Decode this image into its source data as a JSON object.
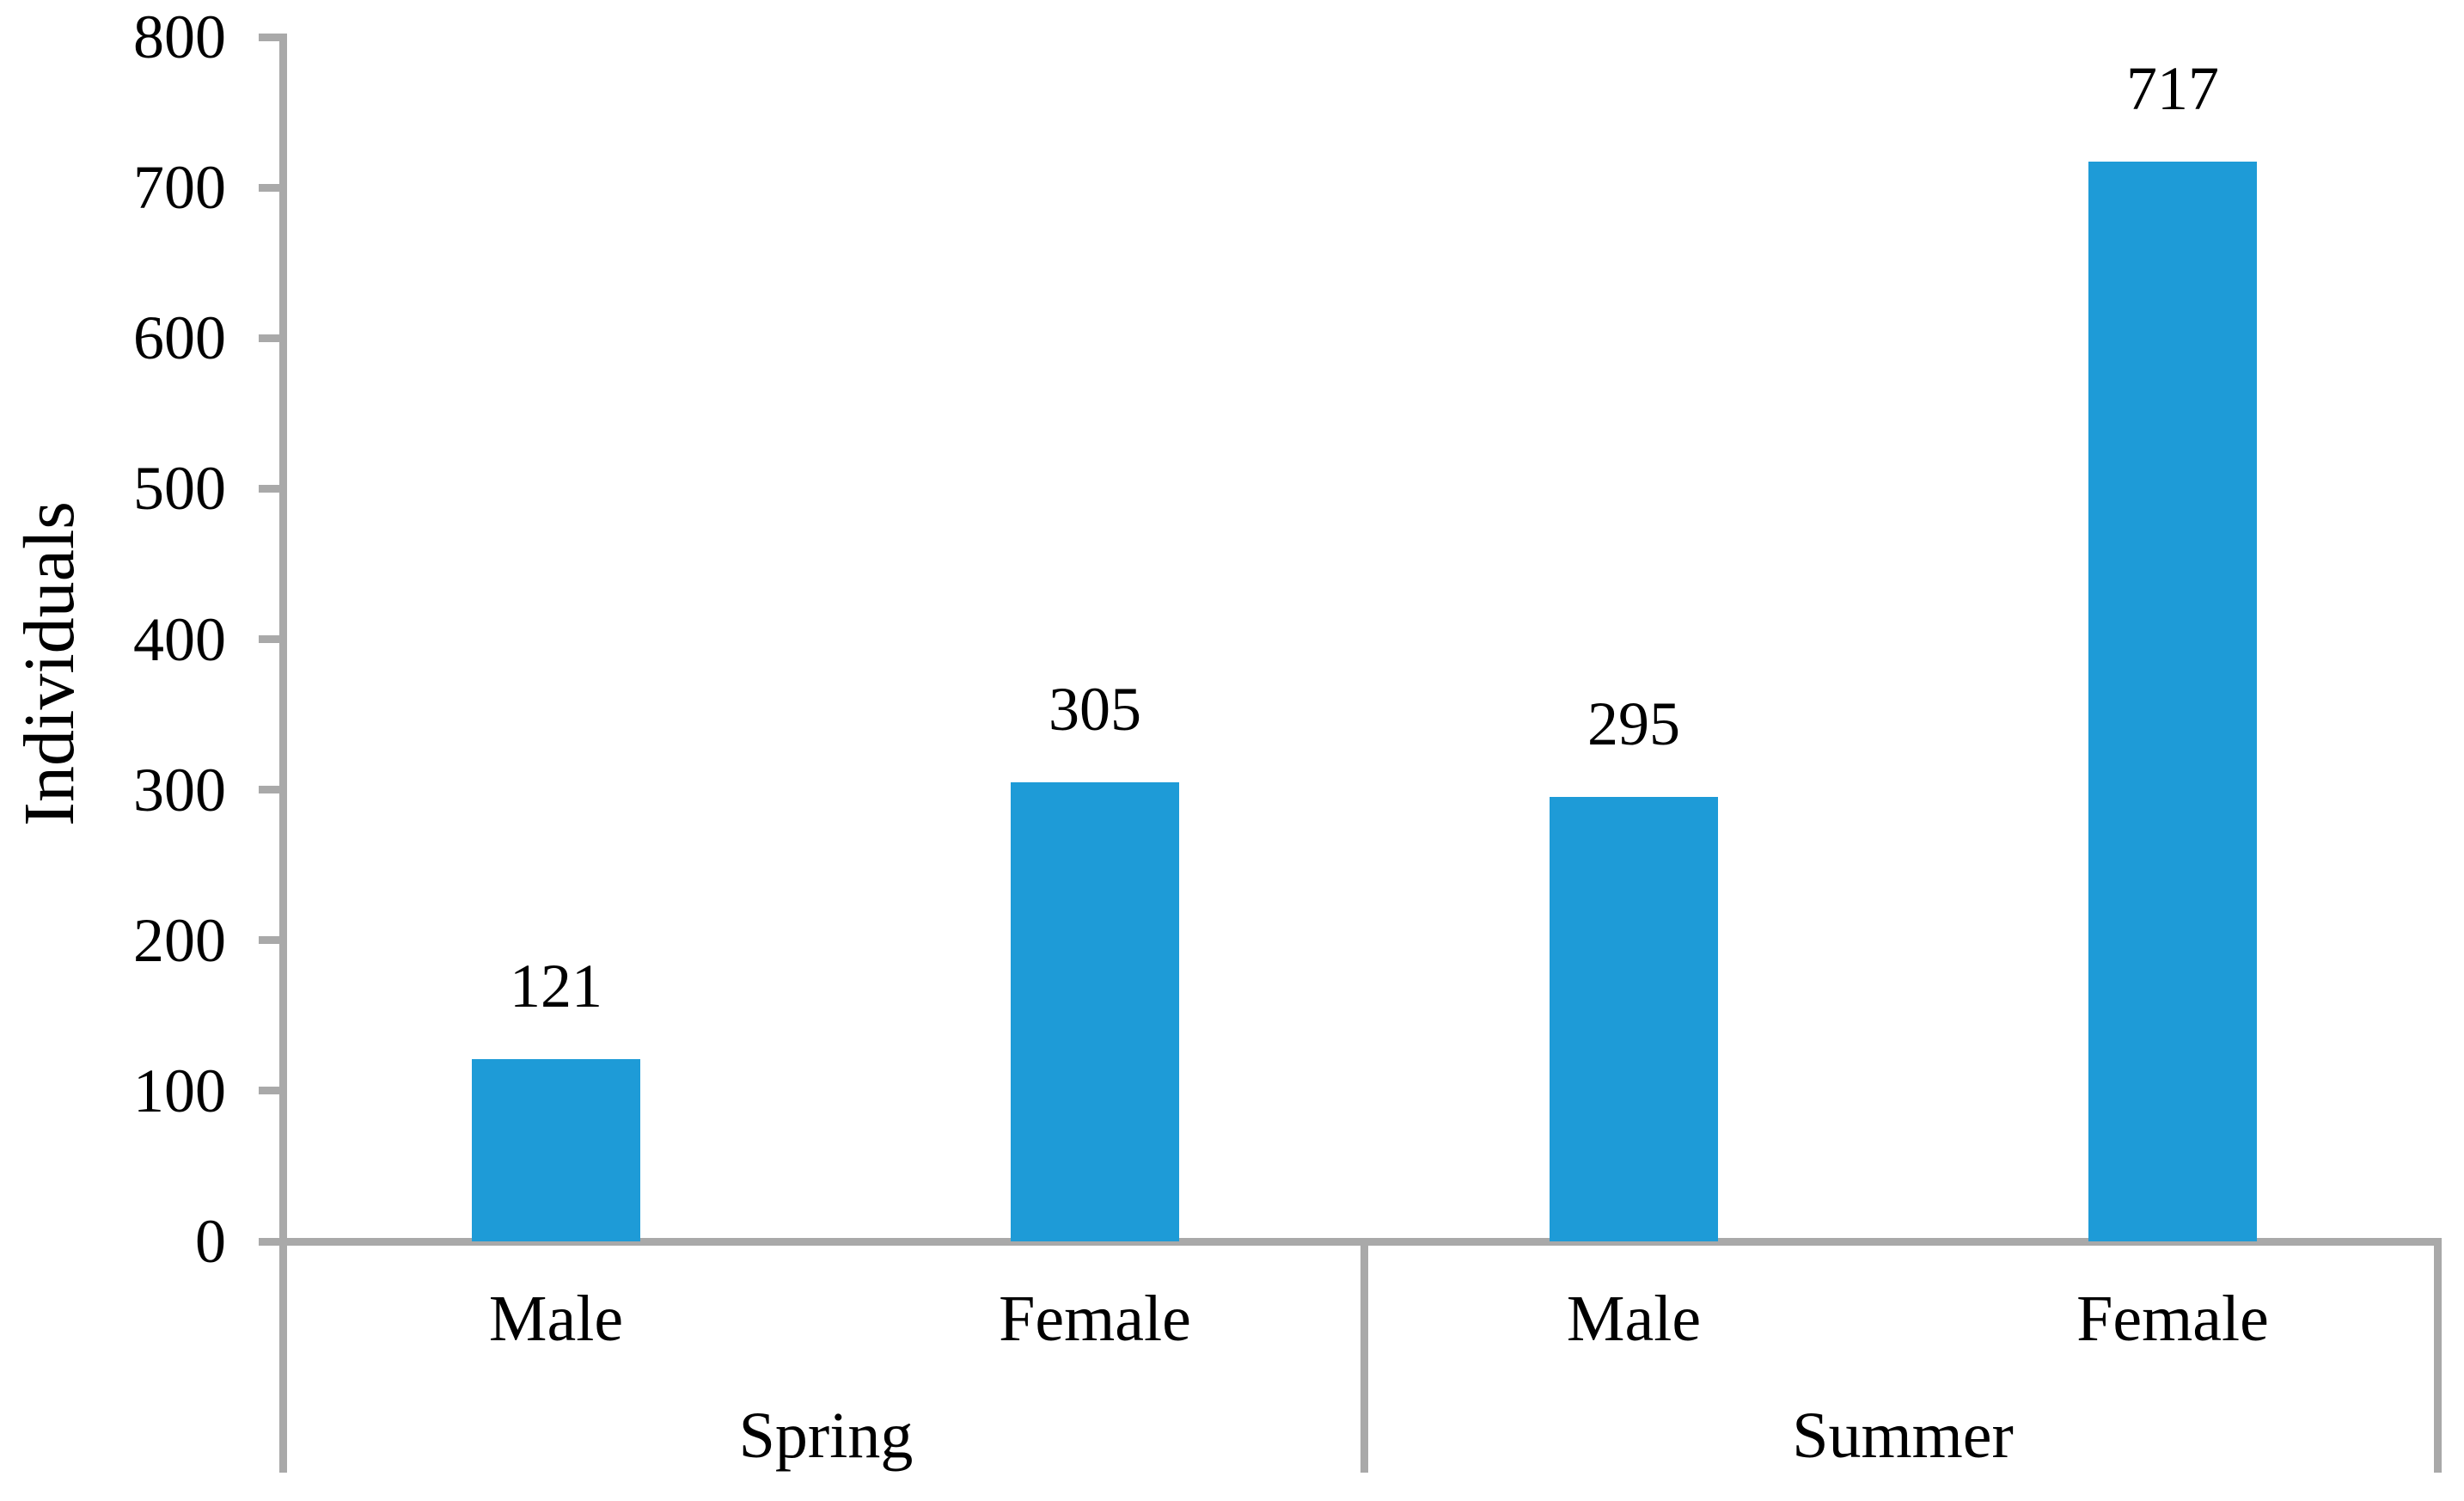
{
  "chart_data": {
    "type": "bar",
    "title": "",
    "ylabel": "Individuals",
    "xlabel": "",
    "ylim": [
      0,
      800
    ],
    "y_tick_step": 100,
    "y_ticks": [
      0,
      100,
      200,
      300,
      400,
      500,
      600,
      700,
      800
    ],
    "grid": false,
    "legend": "none",
    "bar_color": "#1E9BD7",
    "axis_color": "#A9A9A9",
    "text_color": "#000000",
    "groups": [
      {
        "label": "Spring",
        "categories": [
          "Male",
          "Female"
        ],
        "values": [
          121,
          305
        ]
      },
      {
        "label": "Summer",
        "categories": [
          "Male",
          "Female"
        ],
        "values": [
          295,
          717
        ]
      }
    ],
    "categories": [
      "Male",
      "Female",
      "Male",
      "Female"
    ],
    "values": [
      121,
      305,
      295,
      717
    ],
    "data_labels": [
      "121",
      "305",
      "295",
      "717"
    ]
  }
}
